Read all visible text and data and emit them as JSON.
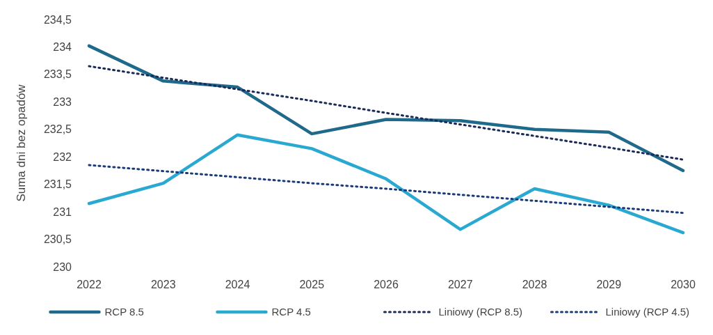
{
  "chart_data": {
    "type": "line",
    "ylabel": "Suma dni bez opadów",
    "categories": [
      "2022",
      "2023",
      "2024",
      "2025",
      "2026",
      "2027",
      "2028",
      "2029",
      "2030"
    ],
    "ylim": [
      230,
      234.5
    ],
    "yticks": [
      {
        "value": 230,
        "label": "230"
      },
      {
        "value": 230.5,
        "label": "230,5"
      },
      {
        "value": 231,
        "label": "231"
      },
      {
        "value": 231.5,
        "label": "231,5"
      },
      {
        "value": 232,
        "label": "232"
      },
      {
        "value": 232.5,
        "label": "232,5"
      },
      {
        "value": 233,
        "label": "233"
      },
      {
        "value": 233.5,
        "label": "233,5"
      },
      {
        "value": 234,
        "label": "234"
      },
      {
        "value": 234.5,
        "label": "234,5"
      }
    ],
    "grid": false,
    "legend": "bottom",
    "marker": "none",
    "series": [
      {
        "name": "RCP 8.5",
        "color": "#1f6a8a",
        "line_style": "solid",
        "values": [
          234.02,
          233.38,
          233.27,
          232.42,
          232.68,
          232.66,
          232.5,
          232.45,
          231.75
        ]
      },
      {
        "name": "RCP 4.5",
        "color": "#29a9d2",
        "line_style": "solid",
        "values": [
          231.15,
          231.52,
          232.4,
          232.15,
          231.6,
          230.68,
          231.42,
          231.12,
          230.62
        ]
      },
      {
        "name": "Liniowy (RCP 8.5)",
        "color": "#1a2a5a",
        "line_style": "dotted",
        "values": [
          233.65,
          233.44,
          233.23,
          233.02,
          232.8,
          232.59,
          232.38,
          232.17,
          231.95
        ]
      },
      {
        "name": "Liniowy (RCP 4.5)",
        "color": "#1a3a7a",
        "line_style": "dotted",
        "values": [
          231.85,
          231.74,
          231.63,
          231.52,
          231.42,
          231.31,
          231.2,
          231.09,
          230.98
        ]
      }
    ]
  }
}
